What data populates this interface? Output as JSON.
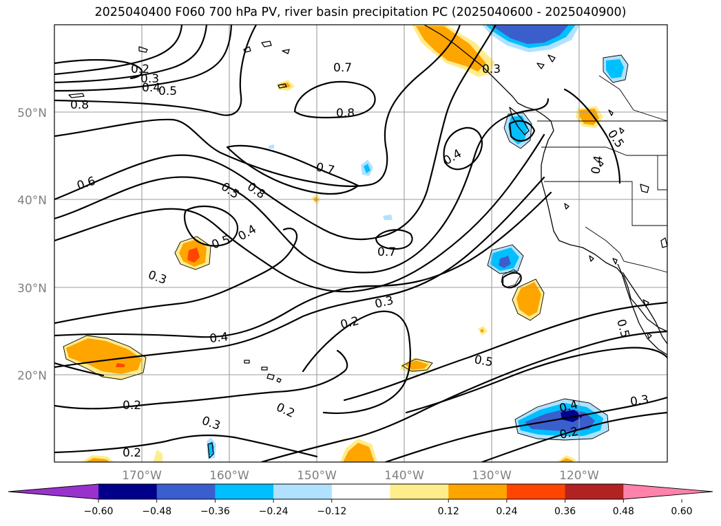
{
  "title": "2025040400 F060 700 hPa PV, river basin precipitation PC (2025040600 - 2025040900)",
  "lat_labels": [
    "50°N",
    "40°N",
    "30°N",
    "20°N"
  ],
  "lon_labels": [
    "170°W",
    "160°W",
    "150°W",
    "140°W",
    "130°W",
    "120°W"
  ],
  "contour_labels": {
    "c1": "0.2",
    "c2": "0.3",
    "c3": "0.4",
    "c4": "0.5",
    "c5": "0.8",
    "c6": "0.7",
    "c7": "0.8",
    "c8": "0.3",
    "c9": "0.6",
    "c10": "0.7",
    "c11": "0.4",
    "c12": "0.5",
    "c13": "0.8",
    "c14": "0.5",
    "c15": "0.4",
    "c16": "0.3",
    "c17": "0.7",
    "c18": "0.3",
    "c19": "0.2",
    "c20": "0.4",
    "c21": "0.5",
    "c22": "0.2",
    "c23": "0.3",
    "c24": "0.2",
    "c25": "0.2",
    "c26": "0.4",
    "c27": "0.2",
    "c28": "0.3",
    "c29": "0.5",
    "c30": "0.5",
    "c31": "0.4"
  },
  "colorbar": {
    "ticks": [
      "−0.60",
      "−0.48",
      "−0.36",
      "−0.24",
      "−0.12",
      "0.12",
      "0.24",
      "0.36",
      "0.48",
      "0.60"
    ],
    "colors": [
      "#9932cc",
      "#00008b",
      "#3a5fcd",
      "#00bfff",
      "#b0e2ff",
      "#ffffff",
      "#ffec8b",
      "#ffa500",
      "#ff4500",
      "#b22222",
      "#ff82ab"
    ]
  }
}
